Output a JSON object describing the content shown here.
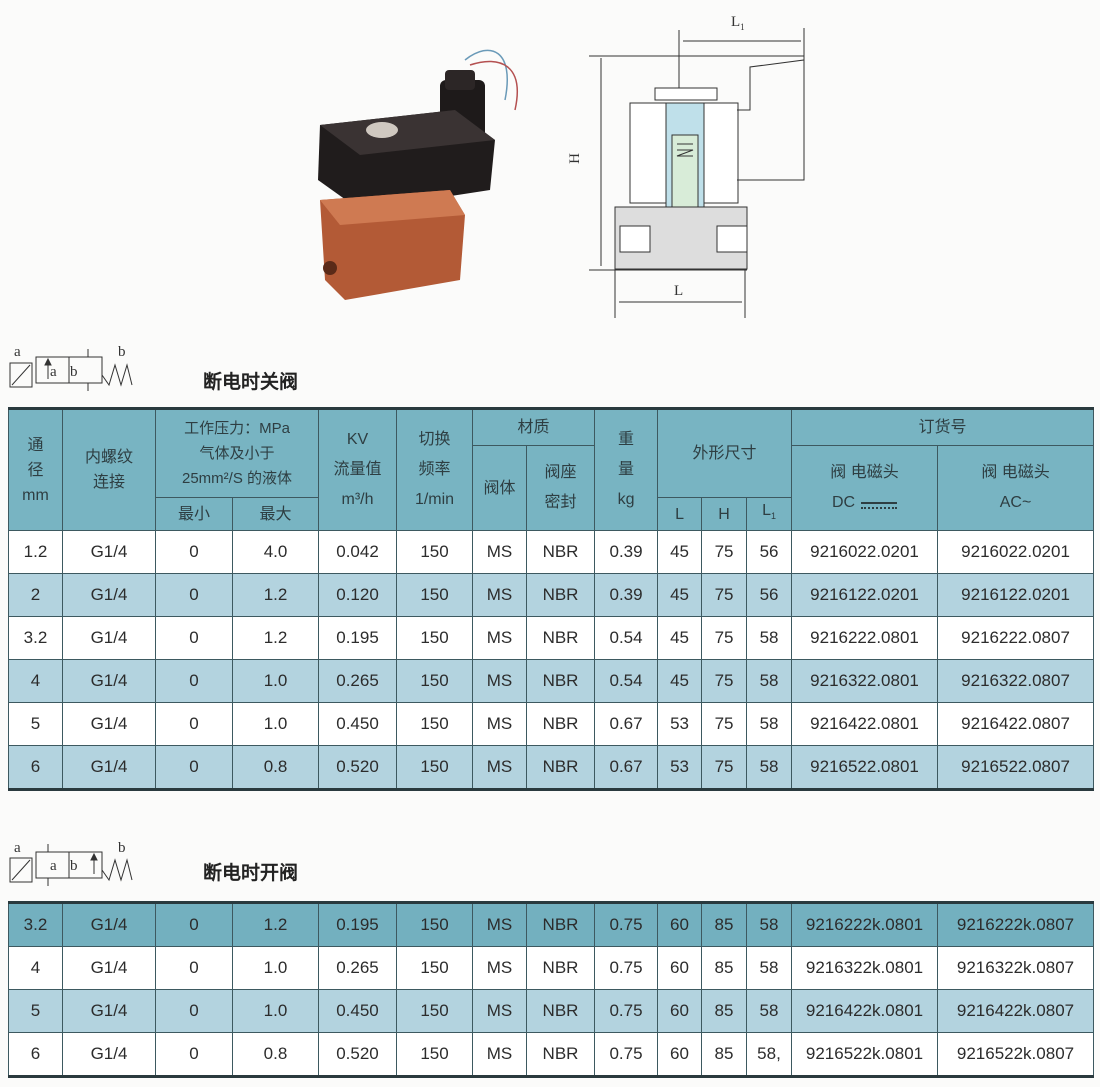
{
  "diagram": {
    "l1_label": "L",
    "l1_sub": "1",
    "h_label": "H",
    "l_label": "L"
  },
  "symbol": {
    "a": "a",
    "b": "b"
  },
  "sections": {
    "normally_closed_title": "断电时关阀",
    "normally_open_title": "断电时开阀"
  },
  "header": {
    "bore": [
      "通",
      "径",
      "mm"
    ],
    "thread": [
      "内螺纹",
      "连接"
    ],
    "pressure": [
      "工作压力：MPa",
      "气体及小于",
      "25mm²/S 的液体"
    ],
    "pressure_min": "最小",
    "pressure_max": "最大",
    "kv": [
      "KV",
      "流量值",
      "m³/h"
    ],
    "switch": [
      "切换",
      "频率",
      "1/min"
    ],
    "material": "材质",
    "material_body": "阀体",
    "material_seal": [
      "阀座",
      "密封"
    ],
    "weight": [
      "重",
      "量",
      "kg"
    ],
    "dimensions": "外形尺寸",
    "dim_l": "L",
    "dim_h": "H",
    "dim_l1": "L",
    "dim_l1_sub": "1",
    "order_no": "订货号",
    "dc": [
      "阀  电磁头",
      "DC"
    ],
    "ac": [
      "阀  电磁头",
      "AC~"
    ]
  },
  "colors": {
    "header": "#78b4c2",
    "row_light": "#b3d3df",
    "row_teal": "#73b0bf",
    "row_white": "#ffffff"
  },
  "normally_closed_rows": [
    [
      "1.2",
      "G1/4",
      "0",
      "4.0",
      "0.042",
      "150",
      "MS",
      "NBR",
      "0.39",
      "45",
      "75",
      "56",
      "9216022.0201",
      "9216022.0201"
    ],
    [
      "2",
      "G1/4",
      "0",
      "1.2",
      "0.120",
      "150",
      "MS",
      "NBR",
      "0.39",
      "45",
      "75",
      "56",
      "9216122.0201",
      "9216122.0201"
    ],
    [
      "3.2",
      "G1/4",
      "0",
      "1.2",
      "0.195",
      "150",
      "MS",
      "NBR",
      "0.54",
      "45",
      "75",
      "58",
      "9216222.0801",
      "9216222.0807"
    ],
    [
      "4",
      "G1/4",
      "0",
      "1.0",
      "0.265",
      "150",
      "MS",
      "NBR",
      "0.54",
      "45",
      "75",
      "58",
      "9216322.0801",
      "9216322.0807"
    ],
    [
      "5",
      "G1/4",
      "0",
      "1.0",
      "0.450",
      "150",
      "MS",
      "NBR",
      "0.67",
      "53",
      "75",
      "58",
      "9216422.0801",
      "9216422.0807"
    ],
    [
      "6",
      "G1/4",
      "0",
      "0.8",
      "0.520",
      "150",
      "MS",
      "NBR",
      "0.67",
      "53",
      "75",
      "58",
      "9216522.0801",
      "9216522.0807"
    ]
  ],
  "normally_open_rows": [
    [
      "3.2",
      "G1/4",
      "0",
      "1.2",
      "0.195",
      "150",
      "MS",
      "NBR",
      "0.75",
      "60",
      "85",
      "58",
      "9216222k.0801",
      "9216222k.0807"
    ],
    [
      "4",
      "G1/4",
      "0",
      "1.0",
      "0.265",
      "150",
      "MS",
      "NBR",
      "0.75",
      "60",
      "85",
      "58",
      "9216322k.0801",
      "9216322k.0807"
    ],
    [
      "5",
      "G1/4",
      "0",
      "1.0",
      "0.450",
      "150",
      "MS",
      "NBR",
      "0.75",
      "60",
      "85",
      "58",
      "9216422k.0801",
      "9216422k.0807"
    ],
    [
      "6",
      "G1/4",
      "0",
      "0.8",
      "0.520",
      "150",
      "MS",
      "NBR",
      "0.75",
      "60",
      "85",
      "58,",
      "9216522k.0801",
      "9216522k.0807"
    ]
  ]
}
